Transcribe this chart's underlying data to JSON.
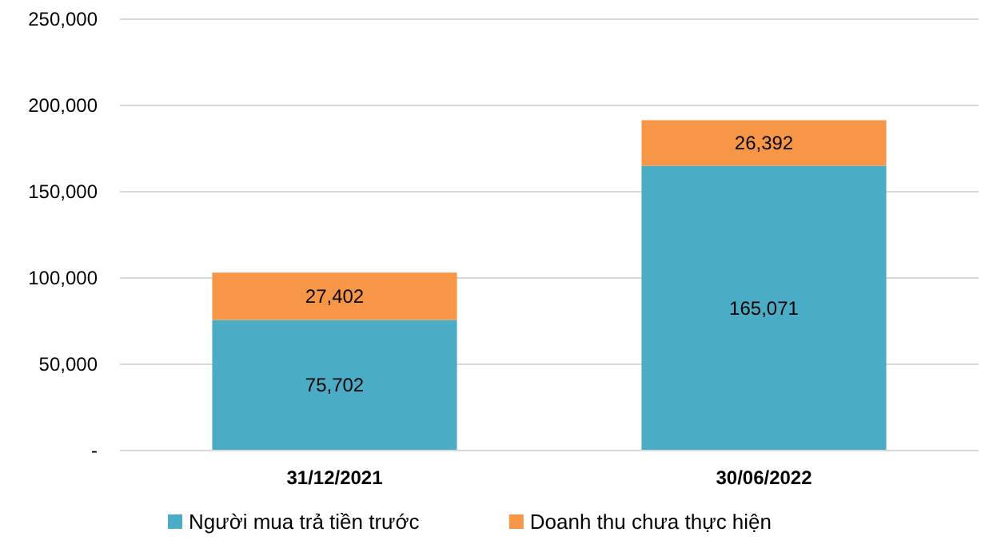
{
  "chart_data": {
    "type": "bar",
    "stacked": true,
    "categories": [
      "31/12/2021",
      "30/06/2022"
    ],
    "series": [
      {
        "name": "Người mua trả tiền trước",
        "color": "#4bacc6",
        "values": [
          75702,
          165071
        ],
        "value_labels": [
          "75,702",
          "165,071"
        ]
      },
      {
        "name": "Doanh thu chưa thực hiện",
        "color": "#f79646",
        "values": [
          27402,
          26392
        ],
        "value_labels": [
          "27,402",
          "26,392"
        ]
      }
    ],
    "ylim": [
      0,
      250000
    ],
    "yticks": [
      {
        "value": 0,
        "label": "-"
      },
      {
        "value": 50000,
        "label": "50,000"
      },
      {
        "value": 100000,
        "label": "100,000"
      },
      {
        "value": 150000,
        "label": "150,000"
      },
      {
        "value": 200000,
        "label": "200,000"
      },
      {
        "value": 250000,
        "label": "250,000"
      }
    ],
    "grid": "y",
    "legend": "bottom"
  }
}
